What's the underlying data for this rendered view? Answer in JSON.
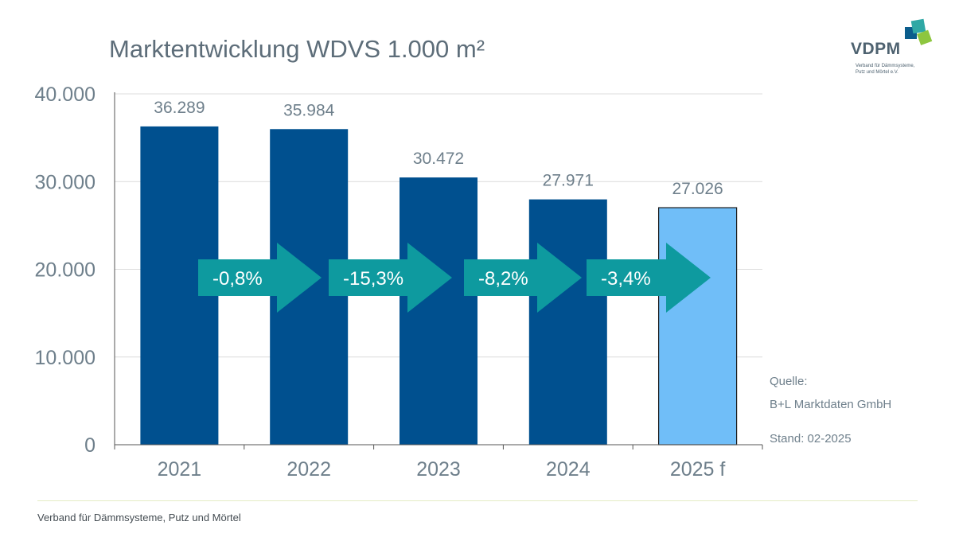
{
  "chart_data": {
    "type": "bar",
    "title": "Marktentwicklung WDVS 1.000 m²",
    "categories": [
      "2021",
      "2022",
      "2023",
      "2024",
      "2025 f"
    ],
    "values": [
      36289,
      35984,
      30472,
      27971,
      27026
    ],
    "value_labels": [
      "36.289",
      "35.984",
      "30.472",
      "27.971",
      "27.026"
    ],
    "forecast_index": 4,
    "ylim": [
      0,
      40000
    ],
    "yticks": [
      0,
      10000,
      20000,
      30000,
      40000
    ],
    "ytick_labels": [
      "0",
      "10.000",
      "20.000",
      "30.000",
      "40.000"
    ],
    "grid": true,
    "changes": [
      "-0,8%",
      "-15,3%",
      "-8,2%",
      "-3,4%"
    ],
    "colors": {
      "bar": "#00508f",
      "forecast_bar": "#70bef8",
      "arrow": "#0e9a9f",
      "axis_text": "#6e7f8b",
      "grid": "#dcdcdc"
    }
  },
  "source": {
    "label": "Quelle:",
    "name": "B+L Marktdaten GmbH",
    "stand": "Stand: 02-2025"
  },
  "logo": {
    "text": "VDPM",
    "subtitle_line1": "Verband für Dämmsysteme,",
    "subtitle_line2": "Putz und Mörtel e.V.",
    "colors": [
      "#0b5d8c",
      "#2fa8a5",
      "#8dc63f"
    ]
  },
  "footer": {
    "text": "Verband für Dämmsysteme, Putz und Mörtel"
  }
}
